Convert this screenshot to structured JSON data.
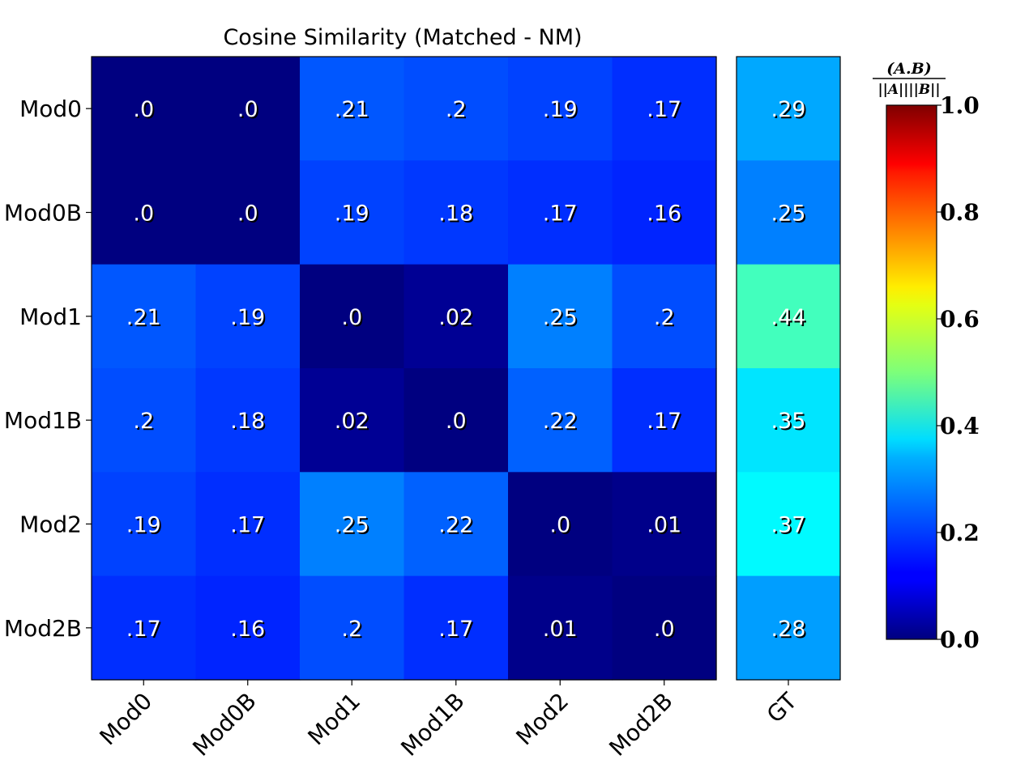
{
  "chart_data": {
    "type": "heatmap",
    "title": "Cosine Similarity (Matched - NM)",
    "rows": [
      "Mod0",
      "Mod0B",
      "Mod1",
      "Mod1B",
      "Mod2",
      "Mod2B"
    ],
    "columns": [
      "Mod0",
      "Mod0B",
      "Mod1",
      "Mod1B",
      "Mod2",
      "Mod2B"
    ],
    "values": [
      [
        0.0,
        0.0,
        0.21,
        0.2,
        0.19,
        0.17
      ],
      [
        0.0,
        0.0,
        0.19,
        0.18,
        0.17,
        0.16
      ],
      [
        0.21,
        0.19,
        0.0,
        0.02,
        0.25,
        0.2
      ],
      [
        0.2,
        0.18,
        0.02,
        0.0,
        0.22,
        0.17
      ],
      [
        0.19,
        0.17,
        0.25,
        0.22,
        0.0,
        0.01
      ],
      [
        0.17,
        0.16,
        0.2,
        0.17,
        0.01,
        0.0
      ]
    ],
    "value_labels": [
      [
        ".0",
        ".0",
        ".21",
        ".2",
        ".19",
        ".17"
      ],
      [
        ".0",
        ".0",
        ".19",
        ".18",
        ".17",
        ".16"
      ],
      [
        ".21",
        ".19",
        ".0",
        ".02",
        ".25",
        ".2"
      ],
      [
        ".2",
        ".18",
        ".02",
        ".0",
        ".22",
        ".17"
      ],
      [
        ".19",
        ".17",
        ".25",
        ".22",
        ".0",
        ".01"
      ],
      [
        ".17",
        ".16",
        ".2",
        ".17",
        ".01",
        ".0"
      ]
    ],
    "gt_column": {
      "label": "GT",
      "values": [
        0.29,
        0.25,
        0.44,
        0.35,
        0.37,
        0.28
      ],
      "value_labels": [
        ".29",
        ".25",
        ".44",
        ".35",
        ".37",
        ".28"
      ]
    },
    "colorbar": {
      "colormap": "jet",
      "range": [
        0.0,
        1.0
      ],
      "ticks": [
        0.0,
        0.2,
        0.4,
        0.6,
        0.8,
        1.0
      ],
      "tick_labels": [
        "0.0",
        "0.2",
        "0.4",
        "0.6",
        "0.8",
        "1.0"
      ],
      "label_numerator": "(A.B)",
      "label_denominator": "||A||||B||"
    }
  }
}
